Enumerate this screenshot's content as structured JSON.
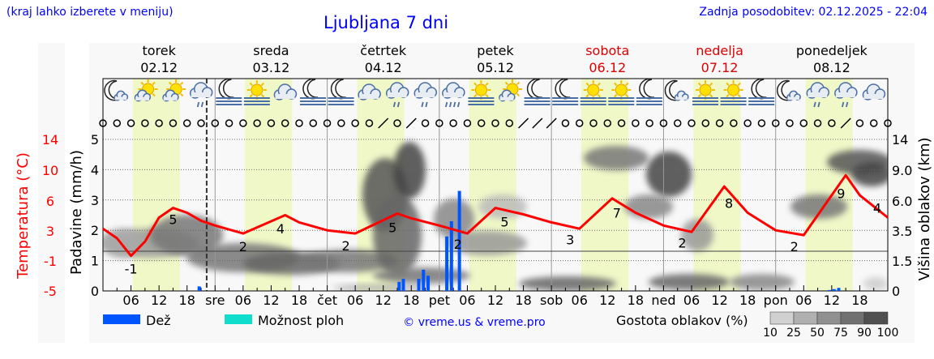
{
  "header": {
    "hint": "(kraj lahko izberete v meniju)",
    "title": "Ljubljana 7 dni",
    "updated": "Zadnja posodobitev: 02.12.2025 - 22:04"
  },
  "days": [
    {
      "name": "torek",
      "date": "02.12",
      "weekend": false
    },
    {
      "name": "sreda",
      "date": "03.12",
      "weekend": false
    },
    {
      "name": "četrtek",
      "date": "04.12",
      "weekend": false
    },
    {
      "name": "petek",
      "date": "05.12",
      "weekend": false
    },
    {
      "name": "sobota",
      "date": "06.12",
      "weekend": true
    },
    {
      "name": "nedelja",
      "date": "07.12",
      "weekend": true
    },
    {
      "name": "ponedeljek",
      "date": "08.12",
      "weekend": false
    }
  ],
  "icons": [
    "moon-cloud",
    "sun-cloud",
    "sun-cloud",
    "cloud-rain",
    "moon-fog",
    "sun-fog",
    "cloud",
    "moon-fog",
    "moon-fog",
    "cloud",
    "cloud-rain",
    "cloud-rain",
    "cloud-heavy-rain",
    "sun-fog",
    "sun-cloud",
    "moon-fog",
    "moon-fog",
    "sun-fog",
    "sun-fog",
    "moon-fog",
    "moon-cloud",
    "sun-fog",
    "sun-fog",
    "moon-fog",
    "moon-cloud",
    "cloud-rain",
    "cloud-rain",
    "cloud"
  ],
  "colors": {
    "temperature": "#ff0000",
    "rain": "#0055ff",
    "showers": "#11ddcc",
    "weekend": "#dd0000",
    "text_blue": "#0000ff",
    "day_band": "#f0f8c8"
  },
  "chart_data": {
    "type": "line",
    "x_tick_labels": [
      "",
      "06",
      "12",
      "18",
      "sre",
      "06",
      "12",
      "18",
      "čet",
      "06",
      "12",
      "18",
      "pet",
      "06",
      "12",
      "18",
      "sob",
      "06",
      "12",
      "18",
      "ned",
      "06",
      "12",
      "18",
      "pon",
      "06",
      "12",
      "18"
    ],
    "y_left": {
      "label": "Padavine (mm/h)",
      "ticks": [
        "0",
        "1",
        "2",
        "3",
        "4",
        "5"
      ],
      "range": [
        0,
        5
      ]
    },
    "y_temp": {
      "label": "Temperatura (°C)",
      "ticks": [
        "-5",
        "-1",
        "3",
        "6",
        "10",
        "14"
      ]
    },
    "y_right": {
      "label": "Višina oblakov (km)",
      "ticks": [
        "0",
        "1.5",
        "3.5",
        "6.0",
        "9.0",
        "14"
      ]
    },
    "temperature": {
      "hours": [
        0,
        3,
        6,
        9,
        12,
        15,
        18,
        21,
        24,
        30,
        39,
        42,
        48,
        54,
        63,
        66,
        72,
        78,
        84,
        90,
        96,
        102,
        109,
        114,
        120,
        126,
        133,
        138,
        144,
        150,
        159,
        162,
        168
      ],
      "values": [
        2.8,
        1.6,
        -0.6,
        1.2,
        4.2,
        5.4,
        4.8,
        3.8,
        3.2,
        2.2,
        4.5,
        3.6,
        2.6,
        2.2,
        4.7,
        4.1,
        3.2,
        2.2,
        5.4,
        4.6,
        3.6,
        2.8,
        6.6,
        4.8,
        3.2,
        2.4,
        8.1,
        4.8,
        2.6,
        2.0,
        9.5,
        7.0,
        4.2
      ]
    },
    "temp_labels": [
      {
        "h": 6,
        "t": "-1"
      },
      {
        "h": 15,
        "t": "5"
      },
      {
        "h": 30,
        "t": "2"
      },
      {
        "h": 38,
        "t": "4"
      },
      {
        "h": 52,
        "t": "2"
      },
      {
        "h": 62,
        "t": "5"
      },
      {
        "h": 76,
        "t": "2"
      },
      {
        "h": 86,
        "t": "5"
      },
      {
        "h": 100,
        "t": "3"
      },
      {
        "h": 110,
        "t": "7"
      },
      {
        "h": 124,
        "t": "2"
      },
      {
        "h": 134,
        "t": "8"
      },
      {
        "h": 148,
        "t": "2"
      },
      {
        "h": 158,
        "t": "9"
      },
      {
        "h": 168,
        "t": "4"
      }
    ],
    "rain": {
      "hours": [
        20.6,
        63.4,
        64.3,
        67.6,
        68.6,
        69.6,
        73.6,
        74.6,
        76.3
      ],
      "values": [
        0.15,
        0.3,
        0.4,
        0.4,
        0.7,
        0.5,
        1.8,
        2.3,
        3.3
      ]
    },
    "rain_small": {
      "hours": [
        155.5,
        156.5,
        157.5
      ],
      "values": [
        0.03,
        0.06,
        0.1
      ]
    },
    "now_hour": 22.2,
    "legend": {
      "rain": "Dež",
      "showers": "Možnost ploh",
      "credit": "© vreme.us & vreme.pro",
      "cloud_density": "Gostota oblakov (%)",
      "density_ticks": [
        "10",
        "25",
        "50",
        "75",
        "90",
        "100"
      ]
    }
  }
}
